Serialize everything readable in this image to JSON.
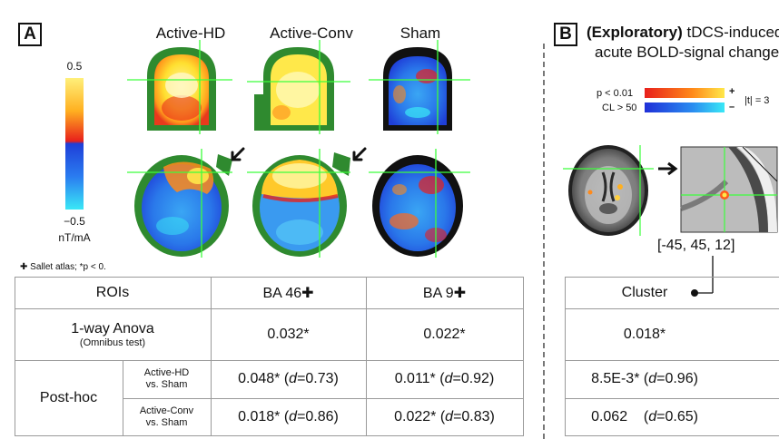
{
  "panel_a": {
    "label": "A",
    "columns": [
      "Active-HD",
      "Active-Conv",
      "Sham"
    ],
    "colorbar": {
      "max": "0.5",
      "min": "−0.5",
      "unit": "nT/mA"
    },
    "footnote": "✚ Sallet atlas; *p < 0.",
    "table": {
      "header": {
        "rois": "ROIs",
        "ba46": "BA 46✚",
        "ba9": "BA 9✚"
      },
      "anova": {
        "title": "1-way Anova",
        "subtitle": "(Omnibus test)",
        "ba46": "0.032*",
        "ba9": "0.022*"
      },
      "posthoc": {
        "label": "Post-hoc",
        "rows": [
          {
            "group1": "Active-HD",
            "group2": "vs. Sham",
            "ba46_val": "0.048* (",
            "ba46_d": "d",
            "ba46_eff": "=0.73)",
            "ba9_val": "0.011* (",
            "ba9_d": "d",
            "ba9_eff": "=0.92)"
          },
          {
            "group1": "Active-Conv",
            "group2": "vs. Sham",
            "ba46_val": "0.018* (",
            "ba46_d": "d",
            "ba46_eff": "=0.86)",
            "ba9_val": "0.022* (",
            "ba9_d": "d",
            "ba9_eff": "=0.83)"
          }
        ]
      }
    }
  },
  "panel_b": {
    "label": "B",
    "title_bold": "(Exploratory)",
    "title_rest": " tDCS-induced",
    "title_line2": "acute BOLD-signal changes",
    "legend": {
      "pos_label": "p < 0.01",
      "neg_label": "CL > 50",
      "plus": "+",
      "minus": "–",
      "t_label": "|t| = 3"
    },
    "coordinates": "[-45, 45, 12]",
    "table": {
      "header": "Cluster",
      "anova": "0.018*",
      "row1_val": "8.5E-3* (",
      "row1_d": "d",
      "row1_eff": "=0.96)",
      "row2_val": "0.062    (",
      "row2_d": "d",
      "row2_eff": "=0.65)"
    }
  },
  "colors": {
    "green": "#2f8a2f",
    "crosshair": "#3cff3c",
    "yellow": "#ffe84a",
    "red": "#e8201c",
    "blue": "#2456e6",
    "cyan": "#28d8f0"
  }
}
